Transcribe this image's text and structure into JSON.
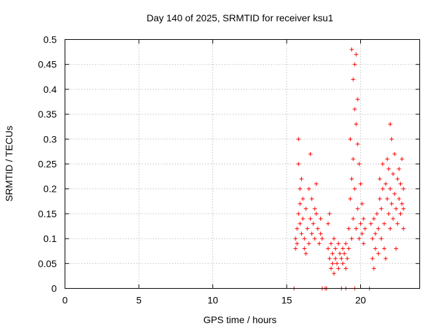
{
  "chart_data": {
    "type": "scatter",
    "title": "Day 140 of 2025, SRMTID for receiver ksu1",
    "xlabel": "GPS time / hours",
    "ylabel": "SRMTID / TECUs",
    "xlim": [
      0,
      24
    ],
    "ylim": [
      0,
      0.5
    ],
    "x_ticks": [
      "0",
      "5",
      "10",
      "15",
      "20"
    ],
    "y_ticks": [
      "0",
      "0.05",
      "0.1",
      "0.15",
      "0.2",
      "0.25",
      "0.3",
      "0.35",
      "0.4",
      "0.45",
      "0.5"
    ],
    "grid": true,
    "marker": "+",
    "series": [
      {
        "name": "ksu1",
        "color": "#ff0000",
        "points": [
          [
            15.5,
            0.0
          ],
          [
            15.6,
            0.1
          ],
          [
            15.6,
            0.08
          ],
          [
            15.7,
            0.12
          ],
          [
            15.7,
            0.09
          ],
          [
            15.8,
            0.15
          ],
          [
            15.8,
            0.3
          ],
          [
            15.8,
            0.25
          ],
          [
            15.9,
            0.2
          ],
          [
            15.9,
            0.17
          ],
          [
            15.9,
            0.13
          ],
          [
            16.0,
            0.22
          ],
          [
            16.0,
            0.11
          ],
          [
            16.1,
            0.18
          ],
          [
            16.1,
            0.14
          ],
          [
            16.2,
            0.1
          ],
          [
            16.2,
            0.08
          ],
          [
            16.3,
            0.16
          ],
          [
            16.3,
            0.07
          ],
          [
            16.4,
            0.12
          ],
          [
            16.5,
            0.2
          ],
          [
            16.5,
            0.09
          ],
          [
            16.6,
            0.27
          ],
          [
            16.6,
            0.14
          ],
          [
            16.7,
            0.18
          ],
          [
            16.7,
            0.11
          ],
          [
            16.8,
            0.13
          ],
          [
            16.9,
            0.16
          ],
          [
            16.9,
            0.1
          ],
          [
            17.0,
            0.21
          ],
          [
            17.0,
            0.15
          ],
          [
            17.1,
            0.12
          ],
          [
            17.2,
            0.09
          ],
          [
            17.3,
            0.14
          ],
          [
            17.3,
            0.11
          ],
          [
            17.4,
            0.1
          ],
          [
            17.4,
            0.0
          ],
          [
            17.6,
            0.0
          ],
          [
            17.7,
            0.0
          ],
          [
            17.8,
            0.08
          ],
          [
            17.8,
            0.13
          ],
          [
            17.9,
            0.06
          ],
          [
            17.9,
            0.15
          ],
          [
            18.0,
            0.04
          ],
          [
            18.0,
            0.09
          ],
          [
            18.1,
            0.05
          ],
          [
            18.1,
            0.07
          ],
          [
            18.2,
            0.03
          ],
          [
            18.2,
            0.1
          ],
          [
            18.3,
            0.06
          ],
          [
            18.3,
            0.08
          ],
          [
            18.4,
            0.05
          ],
          [
            18.5,
            0.09
          ],
          [
            18.5,
            0.04
          ],
          [
            18.6,
            0.07
          ],
          [
            18.7,
            0.06
          ],
          [
            18.7,
            0.0
          ],
          [
            18.8,
            0.08
          ],
          [
            18.8,
            0.05
          ],
          [
            18.9,
            0.07
          ],
          [
            19.0,
            0.04
          ],
          [
            19.0,
            0.09
          ],
          [
            19.0,
            0.0
          ],
          [
            19.1,
            0.06
          ],
          [
            19.2,
            0.12
          ],
          [
            19.2,
            0.08
          ],
          [
            19.3,
            0.3
          ],
          [
            19.3,
            0.18
          ],
          [
            19.4,
            0.48
          ],
          [
            19.4,
            0.22
          ],
          [
            19.4,
            0.1
          ],
          [
            19.5,
            0.42
          ],
          [
            19.5,
            0.26
          ],
          [
            19.5,
            0.14
          ],
          [
            19.6,
            0.45
          ],
          [
            19.6,
            0.36
          ],
          [
            19.6,
            0.2
          ],
          [
            19.6,
            0.0
          ],
          [
            19.7,
            0.47
          ],
          [
            19.7,
            0.33
          ],
          [
            19.7,
            0.12
          ],
          [
            19.8,
            0.38
          ],
          [
            19.8,
            0.29
          ],
          [
            19.8,
            0.16
          ],
          [
            19.9,
            0.25
          ],
          [
            19.9,
            0.1
          ],
          [
            20.0,
            0.21
          ],
          [
            20.0,
            0.13
          ],
          [
            20.1,
            0.17
          ],
          [
            20.1,
            0.11
          ],
          [
            20.2,
            0.14
          ],
          [
            20.2,
            0.09
          ],
          [
            20.3,
            0.12
          ],
          [
            20.6,
            0.0
          ],
          [
            20.7,
            0.13
          ],
          [
            20.8,
            0.1
          ],
          [
            20.8,
            0.06
          ],
          [
            20.9,
            0.14
          ],
          [
            20.9,
            0.04
          ],
          [
            21.0,
            0.11
          ],
          [
            21.0,
            0.08
          ],
          [
            21.1,
            0.15
          ],
          [
            21.2,
            0.12
          ],
          [
            21.2,
            0.07
          ],
          [
            21.3,
            0.18
          ],
          [
            21.3,
            0.22
          ],
          [
            21.4,
            0.16
          ],
          [
            21.4,
            0.1
          ],
          [
            21.5,
            0.25
          ],
          [
            21.5,
            0.2
          ],
          [
            21.6,
            0.13
          ],
          [
            21.6,
            0.08
          ],
          [
            21.7,
            0.21
          ],
          [
            21.7,
            0.06
          ],
          [
            21.8,
            0.18
          ],
          [
            21.8,
            0.26
          ],
          [
            21.9,
            0.15
          ],
          [
            21.9,
            0.24
          ],
          [
            22.0,
            0.33
          ],
          [
            22.0,
            0.2
          ],
          [
            22.0,
            0.12
          ],
          [
            22.1,
            0.3
          ],
          [
            22.1,
            0.17
          ],
          [
            22.2,
            0.23
          ],
          [
            22.2,
            0.14
          ],
          [
            22.3,
            0.27
          ],
          [
            22.3,
            0.19
          ],
          [
            22.4,
            0.16
          ],
          [
            22.4,
            0.08
          ],
          [
            22.5,
            0.22
          ],
          [
            22.5,
            0.13
          ],
          [
            22.6,
            0.24
          ],
          [
            22.6,
            0.18
          ],
          [
            22.7,
            0.15
          ],
          [
            22.7,
            0.21
          ],
          [
            22.8,
            0.17
          ],
          [
            22.8,
            0.26
          ],
          [
            22.9,
            0.2
          ],
          [
            22.9,
            0.16
          ],
          [
            22.9,
            0.12
          ]
        ]
      }
    ]
  }
}
